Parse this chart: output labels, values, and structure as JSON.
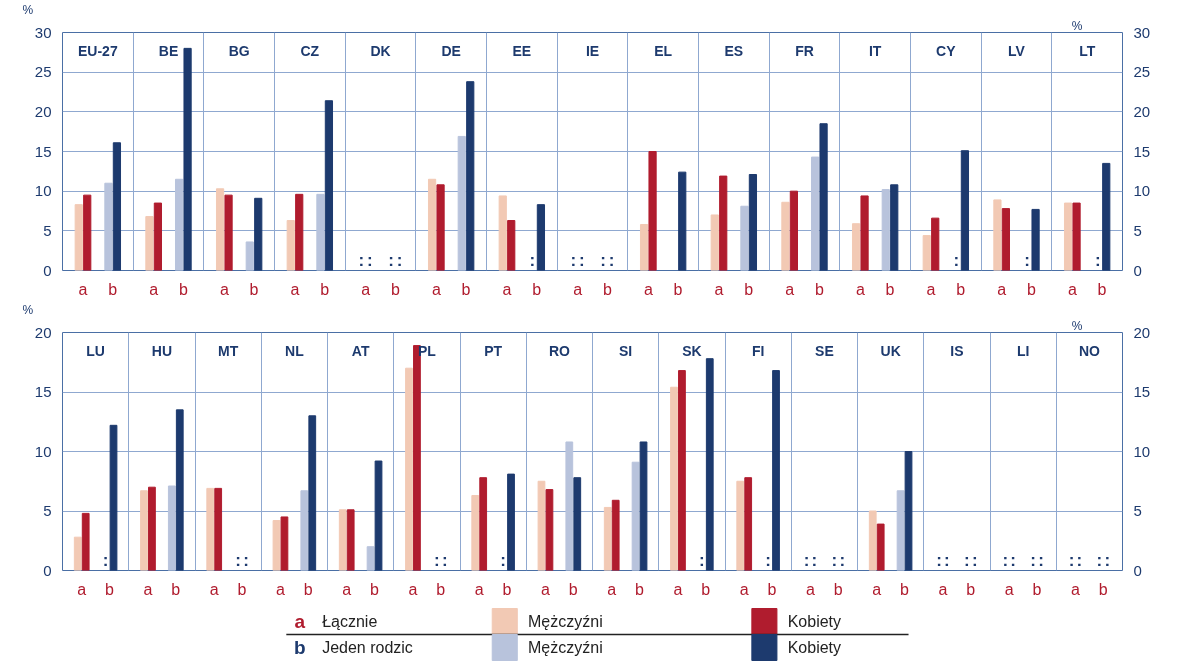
{
  "chart_data": [
    {
      "type": "bar",
      "ylabel": "%",
      "y2label": "%",
      "categories": [
        "EU-27",
        "BE",
        "BG",
        "CZ",
        "DK",
        "DE",
        "EE",
        "IE",
        "EL",
        "ES",
        "FR",
        "IT",
        "CY",
        "LV",
        "LT"
      ],
      "ylim": [
        0,
        30
      ],
      "yticks": [
        0,
        5,
        10,
        15,
        20,
        25,
        30
      ],
      "y2lim": [
        0,
        30
      ],
      "y2ticks": [
        0,
        5,
        10,
        15,
        20,
        25,
        30
      ],
      "grid": true,
      "legend": "bottom",
      "annotations": [
        "a",
        "b"
      ],
      "series": [
        {
          "color": "#f2c9b4",
          "values": [
            8.3,
            6.8,
            10.3,
            6.3,
            null,
            11.5,
            9.4,
            null,
            5.8,
            7,
            8.6,
            5.9,
            4.4,
            8.9,
            8.5
          ],
          "value_labels": [
            null,
            null,
            null,
            null,
            ":",
            null,
            null,
            ":",
            null,
            null,
            null,
            null,
            null,
            null,
            null
          ]
        },
        {
          "color": "#b01c2e",
          "values": [
            9.5,
            8.5,
            9.5,
            9.6,
            null,
            10.8,
            6.3,
            null,
            15,
            11.9,
            10,
            9.4,
            6.6,
            7.8,
            8.5
          ],
          "value_labels": [
            null,
            null,
            null,
            null,
            ":",
            null,
            null,
            ":",
            null,
            null,
            null,
            null,
            null,
            null,
            null
          ]
        },
        {
          "color": "#b8c3dc",
          "values": [
            11,
            11.5,
            3.6,
            9.6,
            null,
            16.9,
            null,
            null,
            null,
            8.1,
            14.3,
            10.2,
            null,
            null,
            null
          ],
          "value_labels": [
            null,
            null,
            null,
            null,
            ":",
            null,
            ":",
            ":",
            null,
            null,
            null,
            null,
            ":",
            ":",
            ":"
          ]
        },
        {
          "color": "#1d3a6e",
          "values": [
            16.1,
            28,
            9.1,
            21.4,
            null,
            23.8,
            8.3,
            null,
            12.4,
            12.1,
            18.5,
            10.8,
            15.1,
            7.7,
            13.5
          ],
          "value_labels": [
            null,
            null,
            null,
            null,
            ":",
            null,
            null,
            ":",
            null,
            null,
            null,
            null,
            null,
            null,
            null
          ]
        }
      ]
    },
    {
      "type": "bar",
      "ylabel": "%",
      "y2label": "%",
      "categories": [
        "LU",
        "HU",
        "MT",
        "NL",
        "AT",
        "PL",
        "PT",
        "RO",
        "SI",
        "SK",
        "FI",
        "SE",
        "UK",
        "IS",
        "LI",
        "NO"
      ],
      "ylim": [
        0,
        20
      ],
      "yticks": [
        0,
        5,
        10,
        15,
        20
      ],
      "y2lim": [
        0,
        20
      ],
      "y2ticks": [
        0,
        5,
        10,
        15,
        20
      ],
      "grid": true,
      "legend": "bottom",
      "annotations": [
        "a",
        "b",
        "Łącznie",
        "Jeden rodzic"
      ],
      "series": [
        {
          "name": "Mężczyźni",
          "color": "#f2c9b4",
          "values": [
            2.8,
            6.7,
            6.9,
            4.2,
            5.1,
            17,
            6.3,
            7.5,
            5.3,
            15.4,
            7.5,
            null,
            5,
            null,
            null,
            null
          ],
          "value_labels": [
            null,
            null,
            null,
            null,
            null,
            null,
            null,
            null,
            null,
            null,
            null,
            ":",
            null,
            ":",
            ":",
            ":"
          ]
        },
        {
          "name": "Kobiety",
          "color": "#b01c2e",
          "values": [
            4.8,
            7,
            6.9,
            4.5,
            5.1,
            18.9,
            7.8,
            6.8,
            5.9,
            16.8,
            7.8,
            null,
            3.9,
            null,
            null,
            null
          ],
          "value_labels": [
            null,
            null,
            null,
            null,
            null,
            null,
            null,
            null,
            null,
            null,
            null,
            ":",
            null,
            ":",
            ":",
            ":"
          ]
        },
        {
          "name": "Mężczyźni",
          "color": "#b8c3dc",
          "values": [
            null,
            7.1,
            null,
            6.7,
            2,
            null,
            null,
            10.8,
            9.1,
            null,
            null,
            null,
            6.7,
            null,
            null,
            null
          ],
          "value_labels": [
            ":",
            null,
            ":",
            null,
            null,
            ":",
            ":",
            null,
            null,
            ":",
            ":",
            ":",
            null,
            ":",
            ":",
            ":"
          ]
        },
        {
          "name": "Kobiety",
          "color": "#1d3a6e",
          "values": [
            12.2,
            13.5,
            null,
            13,
            9.2,
            null,
            8.1,
            7.8,
            10.8,
            17.8,
            16.8,
            null,
            10,
            null,
            null,
            null
          ],
          "value_labels": [
            null,
            null,
            ":",
            null,
            null,
            ":",
            null,
            null,
            null,
            null,
            null,
            ":",
            null,
            ":",
            ":",
            ":"
          ]
        }
      ]
    }
  ]
}
